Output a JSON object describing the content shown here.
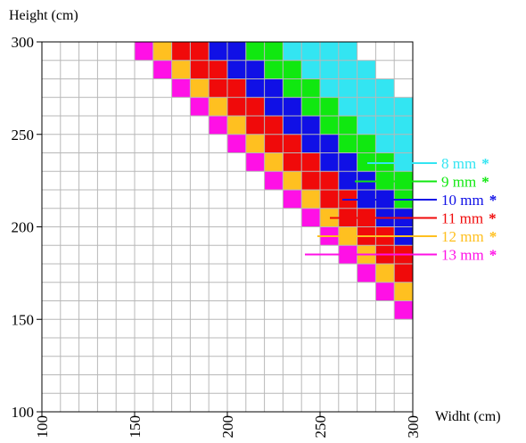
{
  "chart_data": {
    "type": "heatmap",
    "title": "",
    "xlabel": "Widht (cm)",
    "ylabel": "Height (cm)",
    "xlim": [
      100,
      300
    ],
    "ylim": [
      100,
      300
    ],
    "grid": true,
    "cell_size": 10,
    "x_ticks": [
      100,
      150,
      200,
      250,
      300
    ],
    "y_ticks": [
      100,
      150,
      200,
      250,
      300
    ],
    "x_tick_labels": [
      "100",
      "150",
      "200",
      "250",
      "300"
    ],
    "y_tick_labels": [
      "100",
      "150",
      "200",
      "250",
      "300"
    ],
    "legend_position": "right",
    "series": [
      {
        "name": "8 mm",
        "marker": "*",
        "color": "#33e5f2",
        "min_diagonal": 52,
        "max_diagonal": 55
      },
      {
        "name": "9 mm",
        "marker": "*",
        "color": "#10e810",
        "min_diagonal": 50,
        "max_diagonal": 51
      },
      {
        "name": "10 mm",
        "marker": "*",
        "color": "#1010e6",
        "min_diagonal": 48,
        "max_diagonal": 49
      },
      {
        "name": "11 mm",
        "marker": "*",
        "color": "#f00a0a",
        "min_diagonal": 46,
        "max_diagonal": 47
      },
      {
        "name": "12 mm",
        "marker": "*",
        "color": "#ffc020",
        "min_diagonal": 45,
        "max_diagonal": 45
      },
      {
        "name": "13 mm",
        "marker": "*",
        "color": "#ff10e6",
        "min_diagonal": 44,
        "max_diagonal": 44
      }
    ]
  }
}
